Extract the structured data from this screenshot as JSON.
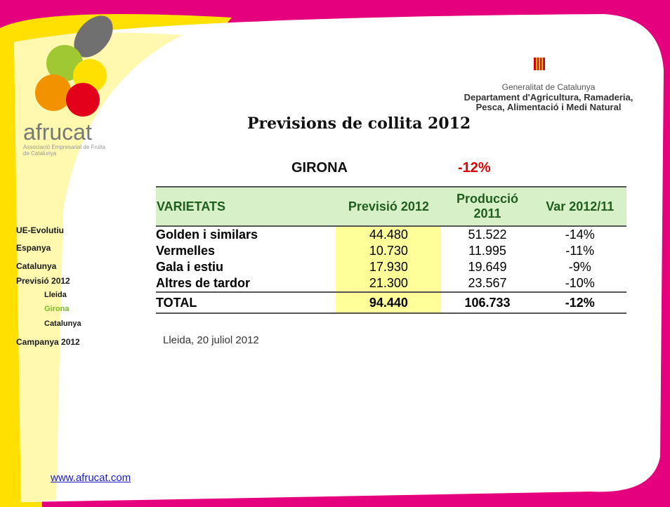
{
  "header": {
    "logo": "afrucat",
    "logo_subtitle": "Associació Empresarial de Fruita de Catalunya",
    "gov_line1": "Generalitat de Catalunya",
    "gov_line2": "Departament d'Agricultura, Ramaderia,",
    "gov_line3": "Pesca, Alimentació i Medi Natural"
  },
  "title": "Previsions de collita 2012",
  "region": {
    "name": "GIRONA",
    "variation": "-12%"
  },
  "table": {
    "headers": [
      "VARIETATS",
      "Previsió 2012",
      "Producció 2011",
      "Var 2012/11"
    ],
    "rows": [
      [
        "Golden i similars",
        "44.480",
        "51.522",
        "-14%"
      ],
      [
        "Vermelles",
        "10.730",
        "11.995",
        "-11%"
      ],
      [
        "Gala i estiu",
        "17.930",
        "19.649",
        "-9%"
      ],
      [
        "Altres de tardor",
        "21.300",
        "23.567",
        "-10%"
      ],
      [
        "TOTAL",
        "94.440",
        "106.733",
        "-12%"
      ]
    ]
  },
  "note": "Lleida, 20 juliol 2012",
  "nav": [
    {
      "label": "UE-Evolutiu",
      "level": 0
    },
    {
      "label": "Espanya",
      "level": 0
    },
    {
      "label": "Catalunya",
      "level": 0
    },
    {
      "label": "Previsió 2012",
      "level": 0
    },
    {
      "label": "Lleida",
      "level": 1
    },
    {
      "label": "Girona",
      "level": 1,
      "active": true
    },
    {
      "label": "Catalunya",
      "level": 1
    },
    {
      "label": "Campanya 2012",
      "level": 0
    }
  ],
  "footer": {
    "website": "www.afrucat.com"
  }
}
